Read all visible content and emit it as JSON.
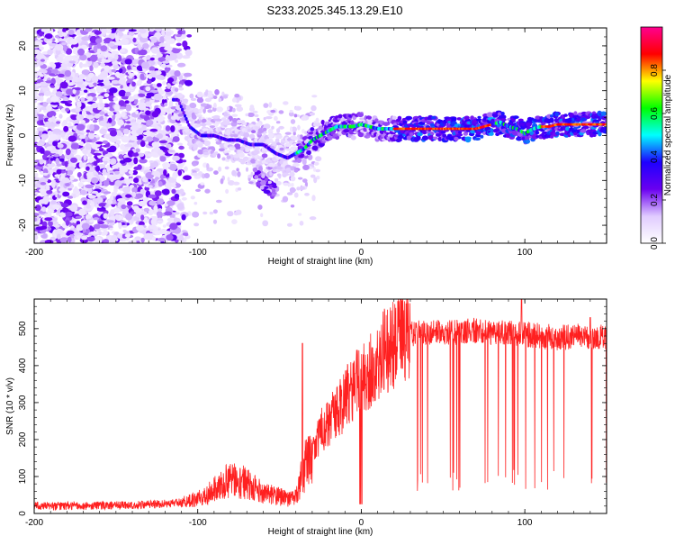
{
  "title": "S233.2025.345.13.29.E10",
  "chart_data": [
    {
      "type": "heatmap",
      "name": "spectrogram",
      "xlabel": "Height of straight line (km)",
      "ylabel": "Frequency (Hz)",
      "xlim": [
        -200,
        150
      ],
      "ylim": [
        -24,
        24
      ],
      "xticks": [
        "-200",
        "-100",
        "0",
        "100"
      ],
      "xtick_values": [
        -200,
        -100,
        0,
        100
      ],
      "yticks": [
        "20",
        "10",
        "0",
        "-10",
        "-20"
      ],
      "ytick_values": [
        20,
        10,
        0,
        -10,
        -20
      ],
      "signal_track": {
        "x": [
          -112,
          -105,
          -98,
          -90,
          -82,
          -75,
          -68,
          -60,
          -52,
          -45,
          -40,
          -35,
          -30,
          -25,
          -20,
          -15,
          -10,
          -5,
          0,
          5,
          10,
          20,
          30,
          40,
          50,
          60,
          70,
          80,
          85,
          90,
          95,
          100,
          105,
          110,
          115,
          120,
          130,
          140,
          150
        ],
        "y": [
          8,
          2,
          0,
          0,
          -1,
          -1,
          -2,
          -2,
          -4,
          -5,
          -4,
          -3,
          -1,
          0,
          1,
          2,
          2,
          2,
          2.5,
          2,
          1.5,
          1.5,
          1.5,
          1.5,
          1.5,
          1.5,
          1.5,
          2.5,
          3,
          2,
          1.5,
          0.5,
          1.5,
          2,
          2,
          2.5,
          2.5,
          2.5,
          2.5
        ]
      },
      "colorbar": {
        "label": "Normalized spectral amplitude",
        "ticks": [
          "0.0",
          "0.2",
          "0.4",
          "0.6",
          "0.8"
        ],
        "tick_values": [
          0,
          0.2,
          0.4,
          0.6,
          0.8
        ],
        "range": [
          0,
          1
        ],
        "colors": [
          "#ffffff",
          "#e0cbff",
          "#6a00f0",
          "#1e00ff",
          "#00ffff",
          "#00ff00",
          "#ffff00",
          "#ff0000",
          "#ff0090"
        ]
      }
    },
    {
      "type": "line",
      "name": "snr",
      "xlabel": "Height of straight line (km)",
      "ylabel": "SNR (10 * v/v)",
      "xlim": [
        -200,
        150
      ],
      "ylim": [
        0,
        580
      ],
      "xticks": [
        "-200",
        "-100",
        "0",
        "100"
      ],
      "xtick_values": [
        -200,
        -100,
        0,
        100
      ],
      "yticks": [
        "0",
        "100",
        "200",
        "300",
        "400",
        "500"
      ],
      "ytick_values": [
        0,
        100,
        200,
        300,
        400,
        500
      ],
      "color": "#ff2020",
      "profile": {
        "x": [
          -200,
          -150,
          -125,
          -110,
          -100,
          -95,
          -85,
          -78,
          -70,
          -60,
          -50,
          -45,
          -40,
          -35,
          -30,
          -25,
          -20,
          -15,
          -10,
          -5,
          0,
          5,
          10,
          15,
          20,
          25,
          30,
          35,
          40,
          50,
          60,
          70,
          80,
          90,
          100,
          110,
          120,
          130,
          140,
          150
        ],
        "y": [
          20,
          22,
          25,
          30,
          40,
          50,
          80,
          95,
          80,
          55,
          45,
          40,
          45,
          120,
          180,
          220,
          250,
          270,
          310,
          340,
          360,
          380,
          410,
          440,
          460,
          480,
          485,
          490,
          490,
          490,
          490,
          495,
          490,
          490,
          485,
          480,
          475,
          480,
          475,
          480
        ]
      },
      "spikes": [
        {
          "x": -36,
          "y": 460
        },
        {
          "x": 98,
          "y": 580
        },
        {
          "x": 140,
          "y": 530
        },
        {
          "x": 147,
          "y": 480
        }
      ],
      "dropouts_start_x": 32,
      "dropouts_end_x": 150
    }
  ]
}
